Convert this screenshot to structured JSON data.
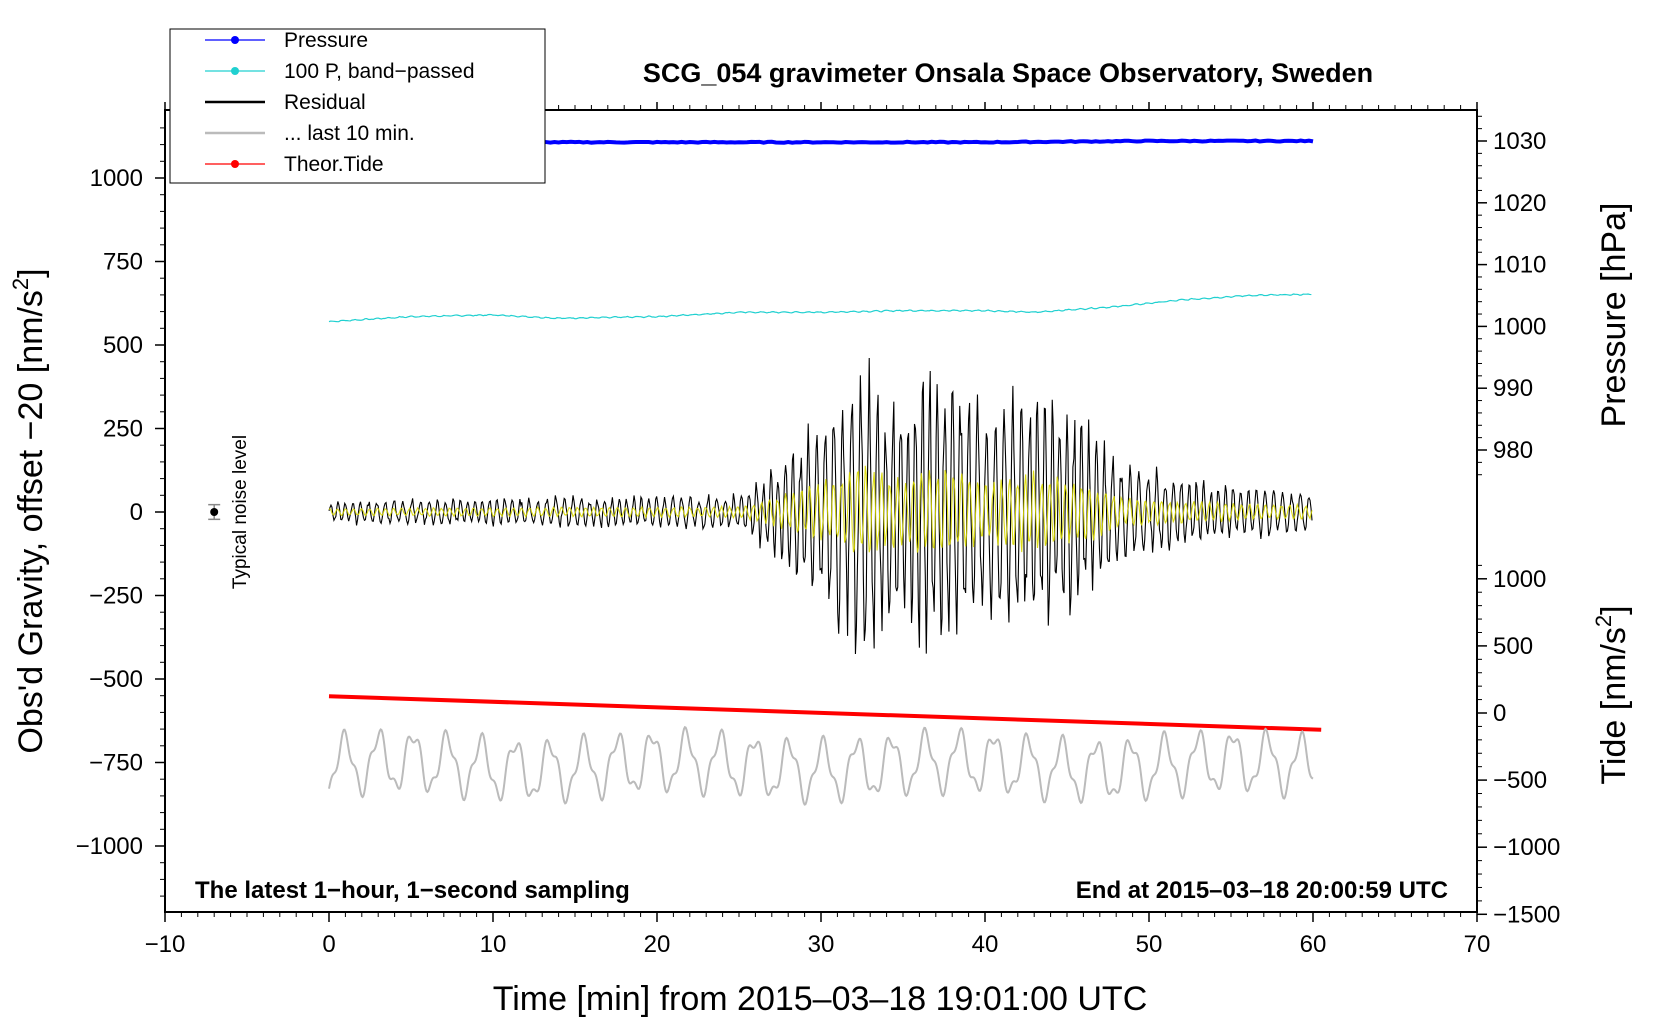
{
  "chart_data": {
    "type": "line",
    "title": "SCG_054 gravimeter Onsala Space Observatory, Sweden",
    "xlabel": "Time [min] from 2015–03–18 19:01:00 UTC",
    "ylabel_left": "Obs'd Gravity, offset −20 [nm/s",
    "ylabel_right_top": "Pressure [hPa]",
    "ylabel_right_bottom": "Tide [nm/s",
    "unit_sup": "2",
    "note_left": "The latest 1−hour, 1−second sampling",
    "note_right": "End at 2015–03–18 20:00:59 UTC",
    "noise_label": "Typical noise level",
    "xlim": [
      -10,
      70
    ],
    "ylim_left": [
      -1200,
      1200
    ],
    "x_ticks": [
      -10,
      0,
      10,
      20,
      30,
      40,
      50,
      60,
      70
    ],
    "x_tick_labels": [
      "−10",
      "0",
      "10",
      "20",
      "30",
      "40",
      "50",
      "60",
      "70"
    ],
    "y_left_ticks": [
      1000,
      750,
      500,
      250,
      0,
      -250,
      -500,
      -750,
      -1000
    ],
    "y_left_tick_labels": [
      "1000",
      "750",
      "500",
      "250",
      "0",
      "−250",
      "−500",
      "−750",
      "−1000"
    ],
    "pressure_axis": {
      "ticks": [
        1030,
        1020,
        1010,
        1000,
        990,
        980
      ],
      "labels": [
        "1030",
        "1020",
        "1010",
        "1000",
        "990",
        "980"
      ]
    },
    "tide_axis": {
      "ticks": [
        1000,
        500,
        0,
        -500,
        -1000,
        -1500
      ],
      "labels": [
        "1000",
        "500",
        "0",
        "−500",
        "−1000",
        "−1500"
      ]
    },
    "legend": [
      {
        "label": "Pressure",
        "color": "#0000ff",
        "marker": true
      },
      {
        "label": "100 P, band−passed",
        "color": "#20d0d0",
        "marker": true
      },
      {
        "label": "Residual",
        "color": "#000000",
        "marker": false
      },
      {
        "label": "... last 10 min.",
        "color": "#bbbbbb",
        "marker": false
      },
      {
        "label": "Theor.Tide",
        "color": "#ff0000",
        "marker": true
      }
    ],
    "noise_point": {
      "x": -7,
      "y": 0,
      "err": 22
    },
    "series": [
      {
        "name": "Pressure",
        "color": "#0000ff",
        "axis": "pressure_hPa",
        "x": [
          0,
          10,
          20,
          30,
          40,
          50,
          60
        ],
        "y": [
          1029.8,
          1029.8,
          1029.8,
          1029.8,
          1029.8,
          1030.0,
          1030.0
        ]
      },
      {
        "name": "100 P, band−passed",
        "color": "#20d0d0",
        "axis": "left",
        "x": [
          0,
          5,
          10,
          14,
          20,
          25,
          30,
          35,
          40,
          43,
          48,
          52,
          56,
          60
        ],
        "y": [
          570,
          585,
          590,
          580,
          585,
          598,
          598,
          603,
          603,
          598,
          615,
          635,
          648,
          652
        ]
      },
      {
        "name": "Residual",
        "color": "#000000",
        "axis": "left",
        "envelope_x": [
          0,
          10,
          25,
          27,
          30,
          32.5,
          35,
          36.5,
          38,
          40,
          41,
          43,
          46,
          48,
          50,
          55,
          60
        ],
        "envelope_amp": [
          35,
          45,
          55,
          130,
          300,
          480,
          330,
          500,
          470,
          280,
          360,
          390,
          310,
          170,
          130,
          90,
          70
        ]
      },
      {
        "name": "Theor.Tide",
        "color": "#ff0000",
        "axis": "tide_nm_s2",
        "x": [
          0,
          60.5
        ],
        "y": [
          125,
          -125
        ]
      },
      {
        "name": "... last 10 min.",
        "color": "#bbbbbb",
        "axis": "left",
        "baseline": -760,
        "amplitude": 95
      }
    ]
  }
}
